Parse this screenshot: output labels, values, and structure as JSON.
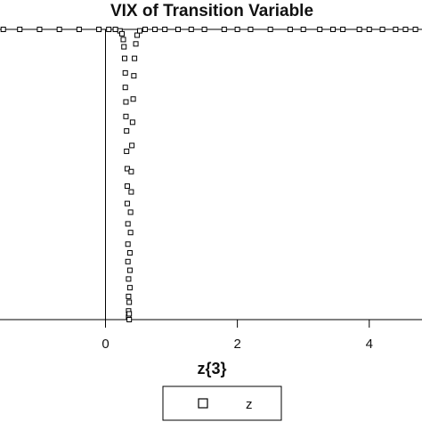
{
  "chart_data": {
    "type": "scatter",
    "title": "VIX of Transition Variable",
    "xlabel": "z{3}",
    "ylabel": "",
    "xlim": [
      -1.6,
      4.8
    ],
    "ylim": [
      0.0,
      1.0
    ],
    "x_ticks": [
      0,
      2,
      4
    ],
    "x_tick_labels": [
      "0",
      "2",
      "4"
    ],
    "grid": false,
    "legend_position": "bottom-center",
    "series": [
      {
        "name": "z",
        "marker": "open-square",
        "color": "#000000",
        "points": [
          {
            "x": -1.55,
            "y": 1.0
          },
          {
            "x": -1.3,
            "y": 1.0
          },
          {
            "x": -1.0,
            "y": 1.0
          },
          {
            "x": -0.7,
            "y": 1.0
          },
          {
            "x": -0.4,
            "y": 1.0
          },
          {
            "x": -0.1,
            "y": 1.0
          },
          {
            "x": 0.05,
            "y": 1.0
          },
          {
            "x": 0.15,
            "y": 1.0
          },
          {
            "x": 0.22,
            "y": 0.995
          },
          {
            "x": 0.25,
            "y": 0.985
          },
          {
            "x": 0.27,
            "y": 0.965
          },
          {
            "x": 0.28,
            "y": 0.94
          },
          {
            "x": 0.29,
            "y": 0.9
          },
          {
            "x": 0.3,
            "y": 0.85
          },
          {
            "x": 0.3,
            "y": 0.8
          },
          {
            "x": 0.31,
            "y": 0.75
          },
          {
            "x": 0.31,
            "y": 0.7
          },
          {
            "x": 0.32,
            "y": 0.65
          },
          {
            "x": 0.32,
            "y": 0.58
          },
          {
            "x": 0.33,
            "y": 0.52
          },
          {
            "x": 0.33,
            "y": 0.46
          },
          {
            "x": 0.33,
            "y": 0.4
          },
          {
            "x": 0.34,
            "y": 0.33
          },
          {
            "x": 0.34,
            "y": 0.26
          },
          {
            "x": 0.34,
            "y": 0.2
          },
          {
            "x": 0.35,
            "y": 0.14
          },
          {
            "x": 0.35,
            "y": 0.08
          },
          {
            "x": 0.35,
            "y": 0.03
          },
          {
            "x": 0.35,
            "y": 0.01
          },
          {
            "x": 0.36,
            "y": 0.0
          },
          {
            "x": 0.36,
            "y": 0.02
          },
          {
            "x": 0.36,
            "y": 0.06
          },
          {
            "x": 0.37,
            "y": 0.11
          },
          {
            "x": 0.37,
            "y": 0.17
          },
          {
            "x": 0.37,
            "y": 0.23
          },
          {
            "x": 0.38,
            "y": 0.3
          },
          {
            "x": 0.38,
            "y": 0.37
          },
          {
            "x": 0.39,
            "y": 0.44
          },
          {
            "x": 0.39,
            "y": 0.51
          },
          {
            "x": 0.4,
            "y": 0.6
          },
          {
            "x": 0.41,
            "y": 0.68
          },
          {
            "x": 0.42,
            "y": 0.76
          },
          {
            "x": 0.43,
            "y": 0.84
          },
          {
            "x": 0.44,
            "y": 0.9
          },
          {
            "x": 0.46,
            "y": 0.95
          },
          {
            "x": 0.48,
            "y": 0.98
          },
          {
            "x": 0.52,
            "y": 0.995
          },
          {
            "x": 0.6,
            "y": 1.0
          },
          {
            "x": 0.75,
            "y": 1.0
          },
          {
            "x": 0.9,
            "y": 1.0
          },
          {
            "x": 1.1,
            "y": 1.0
          },
          {
            "x": 1.3,
            "y": 1.0
          },
          {
            "x": 1.5,
            "y": 1.0
          },
          {
            "x": 1.8,
            "y": 1.0
          },
          {
            "x": 2.0,
            "y": 1.0
          },
          {
            "x": 2.2,
            "y": 1.0
          },
          {
            "x": 2.5,
            "y": 1.0
          },
          {
            "x": 2.8,
            "y": 1.0
          },
          {
            "x": 3.0,
            "y": 1.0
          },
          {
            "x": 3.25,
            "y": 1.0
          },
          {
            "x": 3.45,
            "y": 1.0
          },
          {
            "x": 3.6,
            "y": 1.0
          },
          {
            "x": 3.85,
            "y": 1.0
          },
          {
            "x": 4.0,
            "y": 1.0
          },
          {
            "x": 4.2,
            "y": 1.0
          },
          {
            "x": 4.4,
            "y": 1.0
          },
          {
            "x": 4.55,
            "y": 1.0
          },
          {
            "x": 4.7,
            "y": 1.0
          }
        ]
      }
    ],
    "reference_lines": [
      {
        "axis": "x",
        "value": 0
      }
    ]
  }
}
